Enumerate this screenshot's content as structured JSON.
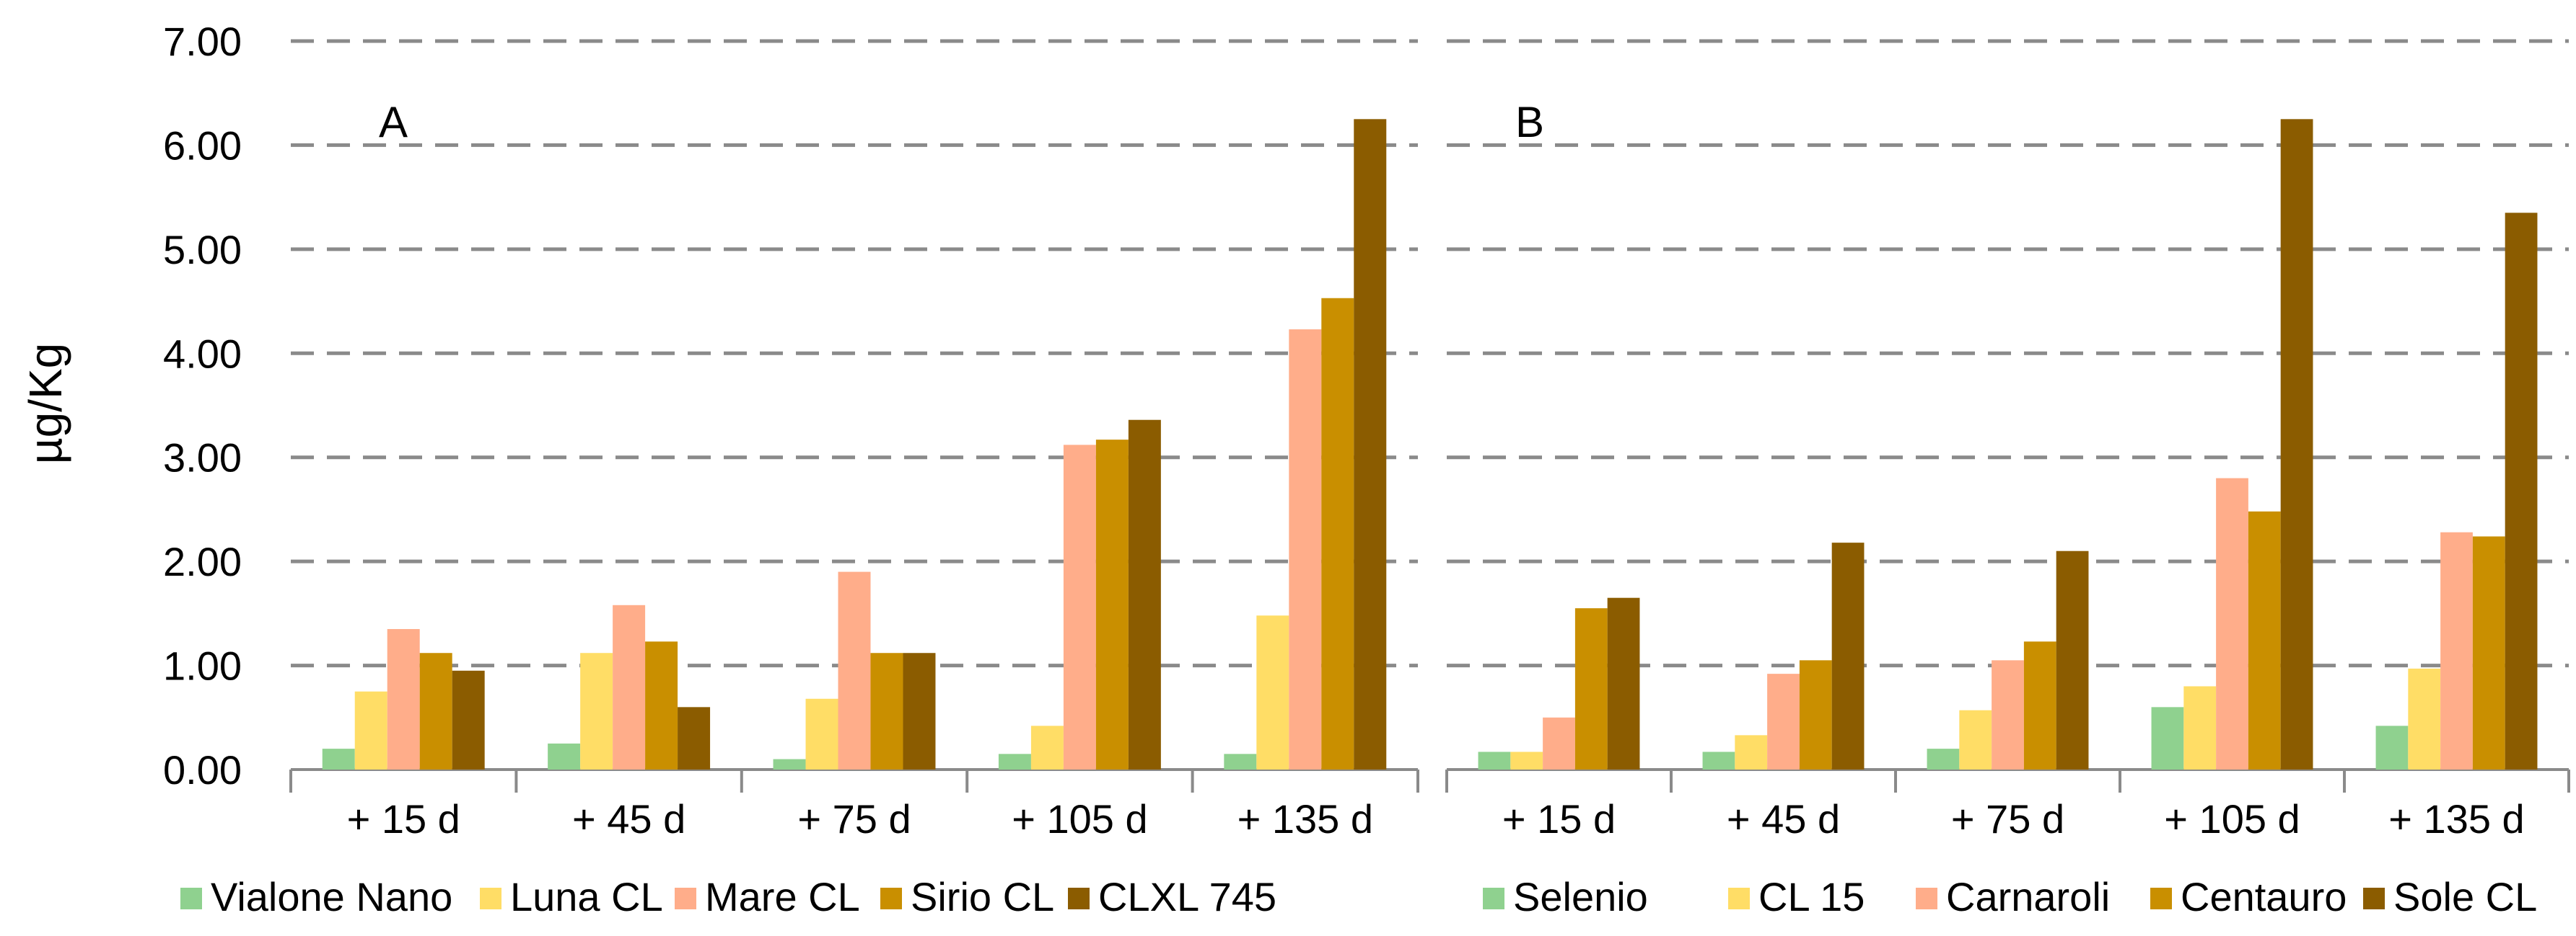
{
  "chart_data": {
    "type": "bar",
    "ylabel": "µg/Kg",
    "ylim": [
      0,
      7
    ],
    "yticks": [
      "0.00",
      "1.00",
      "2.00",
      "3.00",
      "4.00",
      "5.00",
      "6.00",
      "7.00"
    ],
    "grid": true,
    "legend_position": "bottom",
    "panels": [
      {
        "id": "A",
        "label": "A",
        "categories": [
          "+ 15 d",
          "+ 45 d",
          "+ 75 d",
          "+ 105 d",
          "+ 135 d"
        ],
        "series": [
          {
            "name": "Vialone Nano",
            "color": "#8fd18f",
            "values": [
              0.2,
              0.25,
              0.1,
              0.15,
              0.15
            ]
          },
          {
            "name": "Luna CL",
            "color": "#ffdd66",
            "values": [
              0.75,
              1.12,
              0.68,
              0.42,
              1.48
            ]
          },
          {
            "name": "Mare CL",
            "color": "#ffad8a",
            "values": [
              1.35,
              1.58,
              1.9,
              3.12,
              4.23
            ]
          },
          {
            "name": "Sirio CL",
            "color": "#c98f00",
            "values": [
              1.12,
              1.23,
              1.12,
              3.17,
              4.53
            ]
          },
          {
            "name": "CLXL 745",
            "color": "#8b5c00",
            "values": [
              0.95,
              0.6,
              1.12,
              3.36,
              6.25
            ]
          }
        ]
      },
      {
        "id": "B",
        "label": "B",
        "categories": [
          "+ 15 d",
          "+ 45 d",
          "+ 75 d",
          "+ 105 d",
          "+ 135 d"
        ],
        "series": [
          {
            "name": "Selenio",
            "color": "#8fd18f",
            "values": [
              0.17,
              0.17,
              0.2,
              0.6,
              0.42
            ]
          },
          {
            "name": "CL 15",
            "color": "#ffdd66",
            "values": [
              0.17,
              0.33,
              0.57,
              0.8,
              0.97
            ]
          },
          {
            "name": "Carnaroli",
            "color": "#ffad8a",
            "values": [
              0.5,
              0.92,
              1.05,
              2.8,
              2.28
            ]
          },
          {
            "name": "Centauro",
            "color": "#c98f00",
            "values": [
              1.55,
              1.05,
              1.23,
              2.48,
              2.24
            ]
          },
          {
            "name": "Sole CL",
            "color": "#8b5c00",
            "values": [
              1.65,
              2.18,
              2.1,
              6.25,
              5.35
            ]
          }
        ]
      }
    ]
  }
}
